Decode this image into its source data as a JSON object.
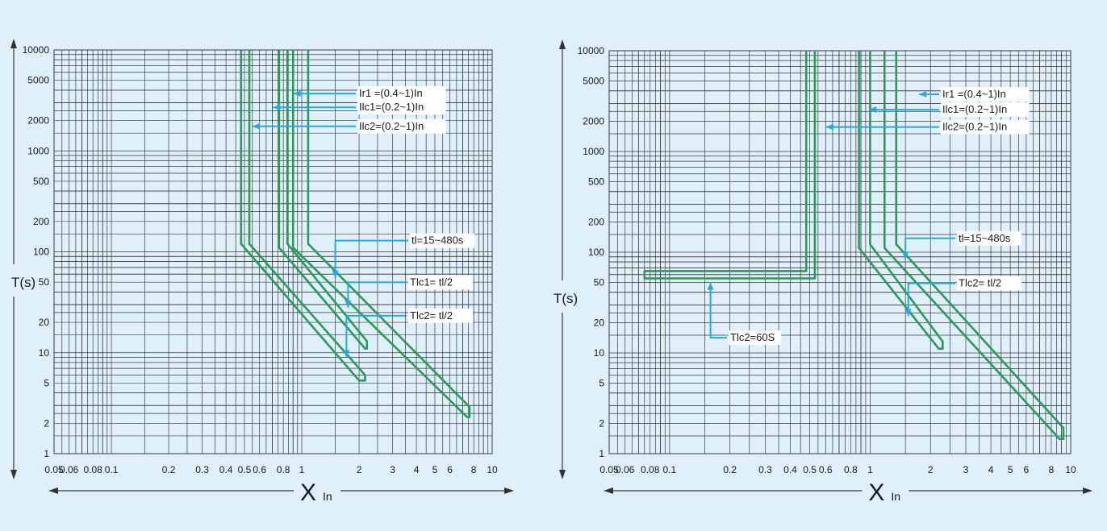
{
  "chart_data": [
    {
      "type": "line",
      "ylabel": "T(s)",
      "xlabel_main": "X",
      "xlabel_sub": "In",
      "x_scale": "log",
      "y_scale": "log",
      "xlim": [
        0.05,
        10
      ],
      "ylim": [
        1,
        10000
      ],
      "x_ticks": [
        0.05,
        0.06,
        0.08,
        0.1,
        0.2,
        0.3,
        0.4,
        0.5,
        0.6,
        0.8,
        1,
        2,
        3,
        4,
        5,
        6,
        8,
        10
      ],
      "x_tick_labels": [
        "0.05",
        "0.06",
        "0.08",
        "0.1",
        "0.2",
        "0.3",
        "0.4",
        "0.5",
        "0.6",
        "0.8",
        "1",
        "2",
        "3",
        "4",
        "5",
        "6",
        "8",
        "10"
      ],
      "y_ticks": [
        1,
        2,
        5,
        10,
        20,
        50,
        100,
        200,
        500,
        1000,
        2000,
        5000,
        10000
      ],
      "y_tick_labels": [
        "1",
        "2",
        "5",
        "10",
        "20",
        "50",
        "100",
        "200",
        "500",
        "1000",
        "2000",
        "5000",
        "10000"
      ],
      "annotations": [
        {
          "text": "Ir1 =(0.4~1)In",
          "x": 0.82,
          "y": 3700
        },
        {
          "text": "Ilc1=(0.2~1)In",
          "x": 0.64,
          "y": 2700
        },
        {
          "text": "Ilc2=(0.2~1)In",
          "x": 0.5,
          "y": 1750
        },
        {
          "text": "tl=15~480s",
          "x": 1.5,
          "y": 80
        },
        {
          "text": "Tlc1= tl/2",
          "x": 1.75,
          "y": 40
        },
        {
          "text": "Tlc2= tl/2",
          "x": 1.82,
          "y": 12
        }
      ],
      "series": [
        {
          "values": [
            [
              0.48,
              10000
            ],
            [
              0.48,
              120
            ],
            [
              2.0,
              5.3
            ],
            [
              2.15,
              5.3
            ],
            [
              2.15,
              6
            ],
            [
              0.53,
              120
            ],
            [
              0.53,
              10000
            ]
          ]
        },
        {
          "values": [
            [
              0.76,
              10000
            ],
            [
              0.76,
              110
            ],
            [
              2.15,
              11
            ],
            [
              2.2,
              11
            ],
            [
              2.2,
              13
            ],
            [
              0.84,
              120
            ],
            [
              0.84,
              10000
            ]
          ]
        },
        {
          "values": [
            [
              0.9,
              10000
            ],
            [
              0.9,
              110
            ],
            [
              7.4,
              2.3
            ],
            [
              7.6,
              2.3
            ],
            [
              7.6,
              2.9
            ],
            [
              1.08,
              120
            ],
            [
              1.08,
              10000
            ]
          ]
        }
      ]
    },
    {
      "type": "line",
      "ylabel": "T(s)",
      "xlabel_main": "X",
      "xlabel_sub": "In",
      "x_scale": "log",
      "y_scale": "log",
      "xlim": [
        0.05,
        10
      ],
      "ylim": [
        1,
        10000
      ],
      "x_ticks": [
        0.05,
        0.06,
        0.08,
        0.1,
        0.2,
        0.3,
        0.4,
        0.5,
        0.6,
        0.8,
        1,
        2,
        3,
        4,
        5,
        6,
        8,
        10
      ],
      "x_tick_labels": [
        "0.05",
        "0.06",
        "0.08",
        "0.1",
        "0.2",
        "0.3",
        "0.4",
        "0.5",
        "0.6",
        "0.8",
        "1",
        "2",
        "3",
        "4",
        "5",
        "6",
        "8",
        "10"
      ],
      "y_ticks": [
        1,
        2,
        5,
        10,
        20,
        50,
        100,
        200,
        500,
        1000,
        2000,
        5000,
        10000
      ],
      "y_tick_labels": [
        "1",
        "2",
        "5",
        "10",
        "20",
        "50",
        "100",
        "200",
        "500",
        "1000",
        "2000",
        "5000",
        "10000"
      ],
      "annotations": [
        {
          "text": "Ir1 =(0.4~1)In",
          "x": 1.6,
          "y": 3700
        },
        {
          "text": "Ilc1=(0.2~1)In",
          "x": 0.9,
          "y": 2600
        },
        {
          "text": "Ilc2=(0.2~1)In",
          "x": 0.55,
          "y": 1750
        },
        {
          "text": "tl=15~480s",
          "x": 1.5,
          "y": 82
        },
        {
          "text": "Tlc2= tl/2",
          "x": 1.55,
          "y": 34
        },
        {
          "text": "Tlc2=60S",
          "x": 0.16,
          "y": 45
        }
      ],
      "series": [
        {
          "values": [
            [
              0.48,
              10000
            ],
            [
              0.48,
              65
            ],
            [
              0.075,
              65
            ],
            [
              0.075,
              55
            ],
            [
              0.53,
              55
            ],
            [
              0.53,
              10000
            ]
          ]
        },
        {
          "values": [
            [
              0.88,
              10000
            ],
            [
              0.88,
              110
            ],
            [
              2.2,
              11
            ],
            [
              2.3,
              11
            ],
            [
              2.3,
              13
            ],
            [
              1.0,
              120
            ],
            [
              1.0,
              10000
            ]
          ]
        },
        {
          "values": [
            [
              1.18,
              10000
            ],
            [
              1.18,
              110
            ],
            [
              8.8,
              1.4
            ],
            [
              9.2,
              1.4
            ],
            [
              9.2,
              1.8
            ],
            [
              1.35,
              120
            ],
            [
              1.35,
              10000
            ]
          ]
        }
      ]
    }
  ]
}
